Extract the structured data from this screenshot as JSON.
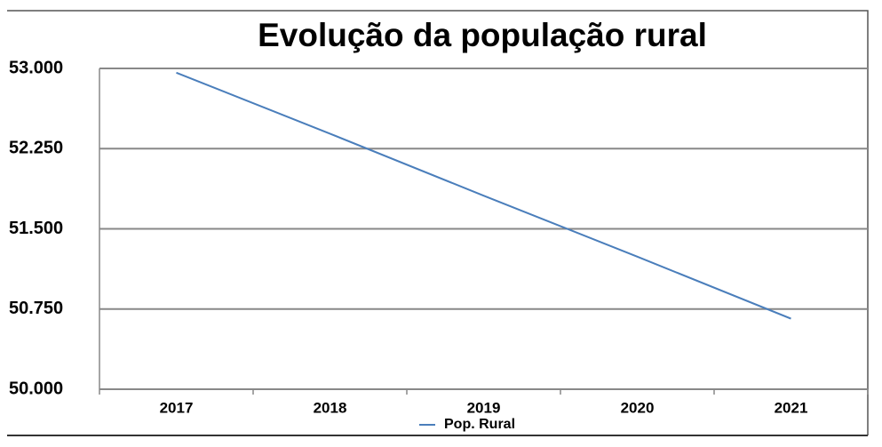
{
  "chart_data": {
    "type": "line",
    "title": "Evolução da população rural",
    "categories": [
      "2017",
      "2018",
      "2019",
      "2020",
      "2021"
    ],
    "series": [
      {
        "name": "Pop. Rural",
        "color": "#4a7ebb",
        "values": [
          52960,
          52390,
          51810,
          51240,
          50660
        ]
      }
    ],
    "ylim": [
      50000,
      53000
    ],
    "yticks": [
      {
        "value": 50000,
        "label": "50.000"
      },
      {
        "value": 50750,
        "label": "50.750"
      },
      {
        "value": 51500,
        "label": "51.500"
      },
      {
        "value": 52250,
        "label": "52.250"
      },
      {
        "value": 53000,
        "label": "53.000"
      }
    ],
    "grid": true,
    "legend": "bottom"
  }
}
